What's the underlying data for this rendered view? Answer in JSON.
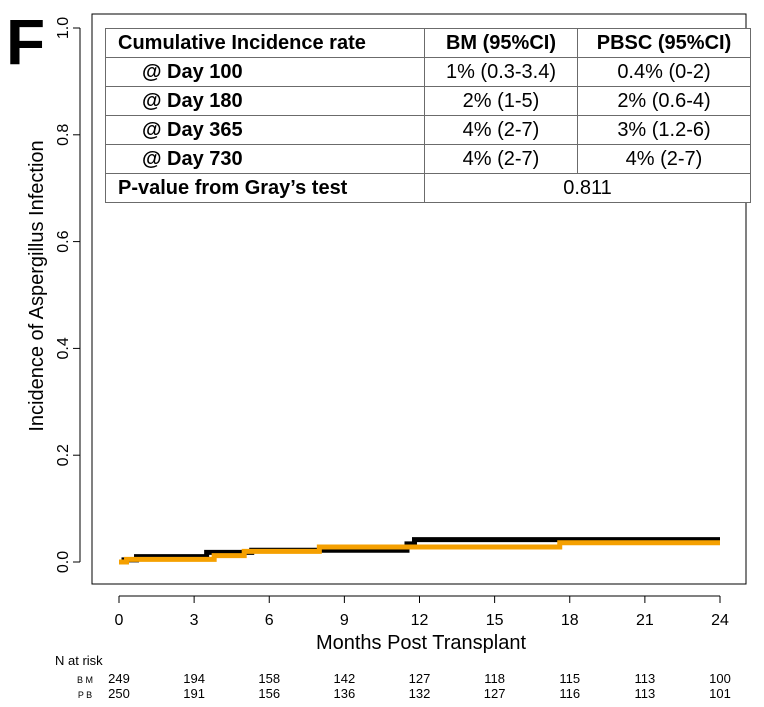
{
  "panel_letter": "F",
  "chart_data": {
    "type": "line",
    "title": "",
    "xlabel": "Months Post Transplant",
    "ylabel": "Incidence of Aspergillus Infection",
    "xlim": [
      0,
      24
    ],
    "ylim": [
      0,
      1
    ],
    "x_ticks": [
      0,
      3,
      6,
      9,
      12,
      15,
      18,
      21,
      24
    ],
    "y_ticks": [
      0.0,
      0.2,
      0.4,
      0.6,
      0.8,
      1.0
    ],
    "y_tick_labels": [
      "0.0",
      "0.2",
      "0.4",
      "0.6",
      "0.8",
      "1.0"
    ],
    "series": [
      {
        "name": "BM",
        "color": "#000000",
        "step_x": [
          0,
          0.2,
          0.7,
          3.5,
          5.3,
          11.5,
          11.8,
          24
        ],
        "step_y": [
          0,
          0.004,
          0.01,
          0.018,
          0.022,
          0.034,
          0.042,
          0.042
        ]
      },
      {
        "name": "PBSC",
        "color": "#f5a000",
        "step_x": [
          0,
          0.3,
          3.8,
          5.0,
          8.0,
          17.6,
          24
        ],
        "step_y": [
          0,
          0.005,
          0.012,
          0.02,
          0.028,
          0.036,
          0.036
        ]
      }
    ],
    "at_risk": {
      "label": "N at risk",
      "rows": [
        {
          "name": "BM",
          "values": [
            249,
            194,
            158,
            142,
            127,
            118,
            115,
            113,
            100
          ]
        },
        {
          "name": "PB",
          "values": [
            250,
            191,
            156,
            136,
            132,
            127,
            116,
            113,
            101
          ]
        }
      ]
    }
  },
  "table": {
    "headers": [
      "Cumulative Incidence rate",
      "BM (95%CI)",
      "PBSC (95%CI)"
    ],
    "rows": [
      {
        "label": "@ Day 100",
        "bm": "1% (0.3-3.4)",
        "pbsc": "0.4% (0-2)"
      },
      {
        "label": "@ Day 180",
        "bm": "2% (1-5)",
        "pbsc": "2% (0.6-4)"
      },
      {
        "label": "@ Day 365",
        "bm": "4% (2-7)",
        "pbsc": "3% (1.2-6)"
      },
      {
        "label": "@ Day 730",
        "bm": "4% (2-7)",
        "pbsc": "4% (2-7)"
      }
    ],
    "pvalue_label": "P-value from Gray’s test",
    "pvalue": "0.811"
  }
}
